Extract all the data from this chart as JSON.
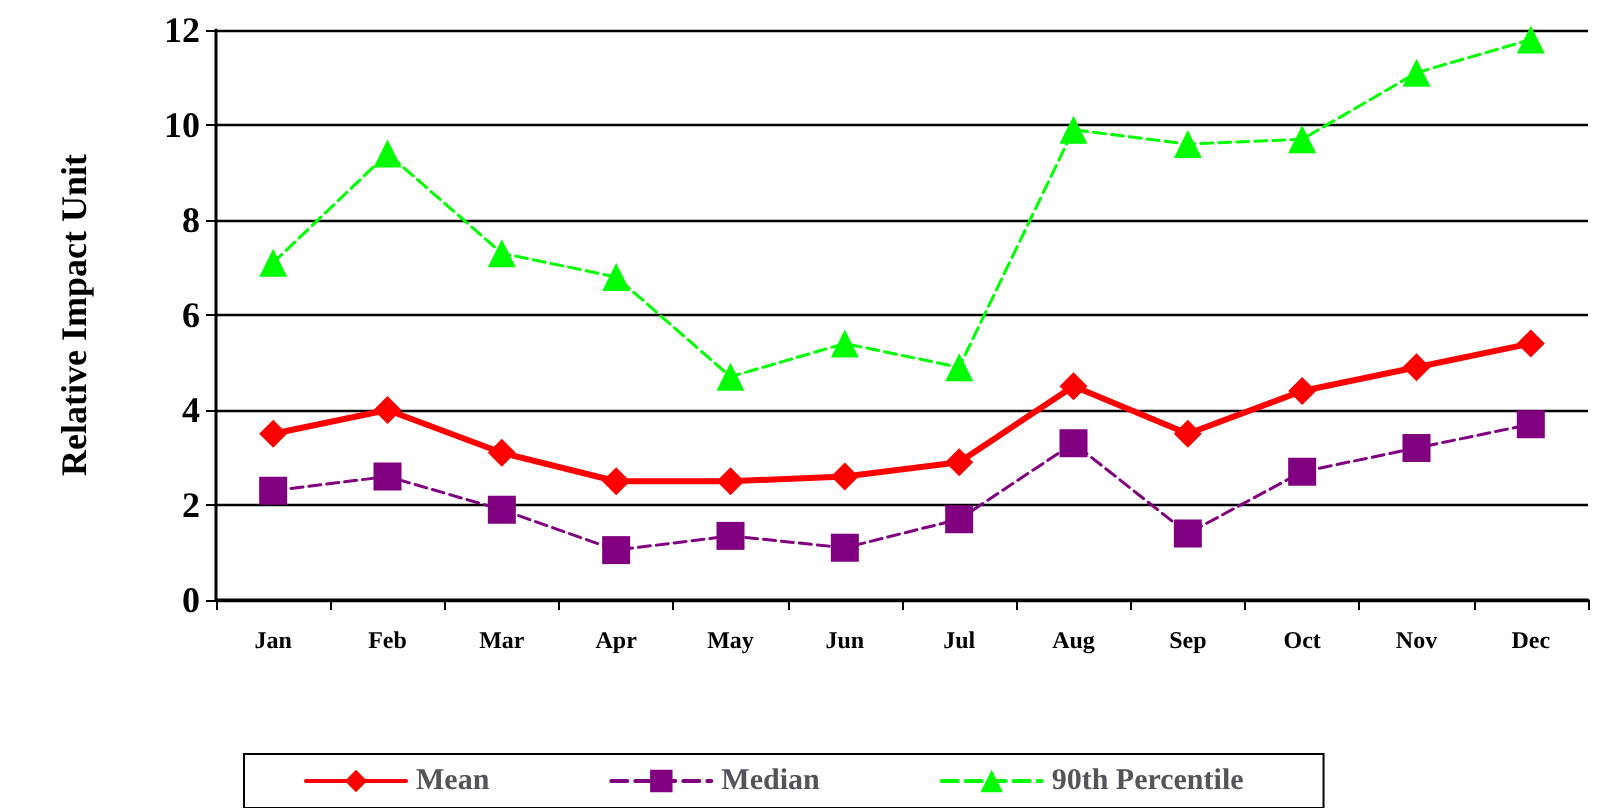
{
  "chart_data": {
    "type": "line",
    "ylabel": "Relative Impact Unit",
    "categories": [
      "Jan",
      "Feb",
      "Mar",
      "Apr",
      "May",
      "Jun",
      "Jul",
      "Aug",
      "Sep",
      "Oct",
      "Nov",
      "Dec"
    ],
    "series": [
      {
        "name": "Mean",
        "color": "#ff0000",
        "marker": "diamond",
        "line_style": "solid",
        "values": [
          3.5,
          4.0,
          3.1,
          2.5,
          2.5,
          2.6,
          2.9,
          4.5,
          3.5,
          4.4,
          4.9,
          5.4
        ]
      },
      {
        "name": "Median",
        "color": "#800080",
        "marker": "square",
        "line_style": "dashed",
        "values": [
          2.3,
          2.6,
          1.9,
          1.05,
          1.35,
          1.1,
          1.7,
          3.3,
          1.4,
          2.7,
          3.2,
          3.7
        ]
      },
      {
        "name": "90th Percentile",
        "color": "#00ff00",
        "marker": "triangle",
        "line_style": "dashed",
        "values": [
          7.1,
          9.4,
          7.3,
          6.8,
          4.7,
          5.4,
          4.9,
          9.9,
          9.6,
          9.7,
          11.1,
          11.8
        ]
      }
    ],
    "ylim": [
      0,
      12
    ],
    "yticks": [
      0,
      2,
      4,
      6,
      8,
      10,
      12
    ],
    "grid": "y",
    "legend": "bottom"
  }
}
